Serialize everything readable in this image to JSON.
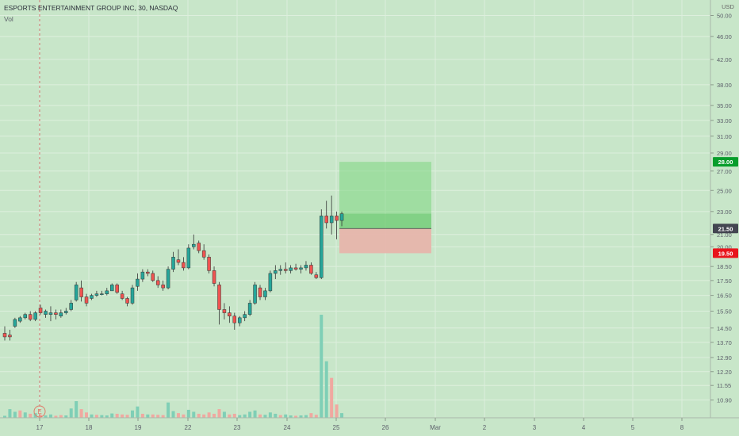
{
  "header": {
    "title": "ESPORTS ENTERTAINMENT GROUP INC, 30, NASDAQ",
    "vol_label": "Vol",
    "currency": "USD"
  },
  "colors": {
    "background": "#c8e6c9",
    "grid": "#ddefdd",
    "up": "#26a69a",
    "down": "#ef5350",
    "volume_up": "#7fcfb6",
    "volume_down": "#f0a8a0",
    "profit_zone": "#7dd67f",
    "loss_zone": "#e8b3aa",
    "target_badge": "#089e2c",
    "stop_badge": "#e8141c",
    "entry_badge": "#434651"
  },
  "chart_data": {
    "type": "candlestick",
    "title": "ESPORTS ENTERTAINMENT GROUP INC, 30, NASDAQ",
    "y_axis": {
      "ticks": [
        "10.90",
        "11.55",
        "12.20",
        "12.90",
        "13.70",
        "14.50",
        "15.50",
        "16.50",
        "17.50",
        "18.50",
        "20.00",
        "21.00",
        "23.00",
        "25.00",
        "27.00",
        "29.00",
        "31.00",
        "33.00",
        "35.00",
        "38.00",
        "42.00",
        "46.00",
        "50.00"
      ],
      "ylim": [
        10.7,
        50.0
      ],
      "scale": "log"
    },
    "x_axis": {
      "ticks": [
        "17",
        "18",
        "19",
        "22",
        "23",
        "24",
        "25",
        "26",
        "Mar",
        "2",
        "3",
        "4",
        "5",
        "8"
      ]
    },
    "event_marker": "E",
    "position": {
      "type": "long",
      "entry": 21.5,
      "target": 28.0,
      "stop": 19.5,
      "entry_label": "21.50",
      "target_label": "28.00",
      "stop_label": "19.50"
    },
    "candles": [
      [
        14.2,
        14.6,
        13.8,
        14.0
      ],
      [
        14.1,
        14.4,
        13.8,
        14.0
      ],
      [
        14.6,
        15.1,
        14.5,
        15.0
      ],
      [
        14.9,
        15.2,
        14.8,
        15.1
      ],
      [
        15.1,
        15.4,
        15.0,
        15.3
      ],
      [
        15.3,
        15.5,
        14.9,
        15.0
      ],
      [
        15.0,
        15.5,
        14.9,
        15.4
      ],
      [
        15.7,
        15.9,
        15.3,
        15.4
      ],
      [
        15.3,
        15.6,
        15.1,
        15.5
      ],
      [
        15.3,
        15.8,
        14.9,
        15.4
      ],
      [
        15.4,
        15.6,
        15.0,
        15.3
      ],
      [
        15.2,
        15.6,
        15.1,
        15.4
      ],
      [
        15.4,
        15.7,
        15.3,
        15.5
      ],
      [
        15.6,
        16.2,
        15.5,
        16.0
      ],
      [
        16.2,
        17.4,
        16.1,
        17.2
      ],
      [
        17.0,
        17.5,
        16.1,
        16.4
      ],
      [
        16.4,
        16.6,
        15.8,
        16.0
      ],
      [
        16.3,
        16.6,
        16.2,
        16.5
      ],
      [
        16.5,
        16.8,
        16.4,
        16.6
      ],
      [
        16.6,
        16.8,
        16.5,
        16.6
      ],
      [
        16.6,
        17.0,
        16.5,
        16.8
      ],
      [
        16.8,
        17.3,
        16.8,
        17.2
      ],
      [
        17.2,
        17.3,
        16.6,
        16.7
      ],
      [
        16.6,
        16.8,
        16.2,
        16.3
      ],
      [
        16.3,
        16.4,
        15.8,
        16.0
      ],
      [
        16.0,
        17.2,
        15.9,
        17.0
      ],
      [
        17.1,
        18.0,
        16.8,
        17.6
      ],
      [
        17.6,
        18.3,
        17.4,
        18.1
      ],
      [
        18.1,
        18.3,
        17.8,
        18.0
      ],
      [
        18.0,
        18.2,
        17.4,
        17.5
      ],
      [
        17.5,
        17.8,
        17.0,
        17.2
      ],
      [
        17.2,
        17.5,
        16.8,
        17.0
      ],
      [
        17.0,
        18.5,
        16.9,
        18.3
      ],
      [
        18.3,
        19.6,
        18.1,
        19.2
      ],
      [
        19.0,
        19.8,
        18.6,
        18.8
      ],
      [
        18.8,
        19.2,
        18.2,
        18.4
      ],
      [
        18.4,
        20.2,
        18.3,
        19.9
      ],
      [
        20.0,
        21.0,
        19.8,
        20.2
      ],
      [
        20.3,
        20.5,
        19.5,
        19.7
      ],
      [
        19.7,
        20.2,
        19.0,
        19.2
      ],
      [
        19.2,
        19.4,
        18.0,
        18.2
      ],
      [
        18.2,
        18.5,
        17.1,
        17.3
      ],
      [
        17.2,
        17.4,
        14.7,
        15.6
      ],
      [
        15.6,
        16.0,
        15.0,
        15.4
      ],
      [
        15.4,
        15.8,
        14.8,
        15.2
      ],
      [
        15.2,
        15.4,
        14.4,
        14.8
      ],
      [
        14.8,
        15.2,
        14.6,
        15.1
      ],
      [
        15.1,
        15.5,
        14.9,
        15.3
      ],
      [
        15.3,
        16.2,
        15.2,
        16.0
      ],
      [
        16.0,
        17.4,
        15.9,
        17.2
      ],
      [
        17.0,
        17.2,
        16.2,
        16.4
      ],
      [
        16.4,
        17.0,
        16.2,
        16.8
      ],
      [
        16.8,
        18.2,
        16.7,
        18.0
      ],
      [
        18.0,
        18.6,
        17.6,
        18.2
      ],
      [
        18.2,
        18.6,
        17.9,
        18.3
      ],
      [
        18.3,
        18.8,
        18.0,
        18.2
      ],
      [
        18.2,
        18.6,
        18.0,
        18.4
      ],
      [
        18.4,
        18.7,
        18.2,
        18.3
      ],
      [
        18.3,
        18.6,
        18.0,
        18.4
      ],
      [
        18.4,
        18.9,
        18.2,
        18.6
      ],
      [
        18.6,
        18.8,
        17.9,
        18.0
      ],
      [
        17.9,
        18.1,
        17.6,
        17.7
      ],
      [
        17.7,
        23.2,
        17.6,
        22.6
      ],
      [
        22.6,
        24.0,
        21.5,
        22.0
      ],
      [
        22.0,
        24.5,
        21.0,
        22.6
      ],
      [
        22.6,
        23.0,
        20.6,
        22.2
      ],
      [
        22.2,
        23.0,
        21.7,
        22.8
      ]
    ],
    "volume": [
      {
        "v": 0.6,
        "up": true
      },
      {
        "v": 2.6,
        "up": true
      },
      {
        "v": 1.8,
        "up": true
      },
      {
        "v": 2.2,
        "up": false
      },
      {
        "v": 1.6,
        "up": true
      },
      {
        "v": 1.2,
        "up": false
      },
      {
        "v": 1.4,
        "up": true
      },
      {
        "v": 0.9,
        "up": false
      },
      {
        "v": 0.7,
        "up": true
      },
      {
        "v": 1.0,
        "up": true
      },
      {
        "v": 0.6,
        "up": false
      },
      {
        "v": 0.8,
        "up": false
      },
      {
        "v": 0.7,
        "up": true
      },
      {
        "v": 2.8,
        "up": true
      },
      {
        "v": 5.0,
        "up": true
      },
      {
        "v": 2.6,
        "up": false
      },
      {
        "v": 1.6,
        "up": false
      },
      {
        "v": 1.0,
        "up": true
      },
      {
        "v": 0.9,
        "up": false
      },
      {
        "v": 0.8,
        "up": true
      },
      {
        "v": 0.7,
        "up": true
      },
      {
        "v": 1.3,
        "up": true
      },
      {
        "v": 1.2,
        "up": false
      },
      {
        "v": 1.0,
        "up": false
      },
      {
        "v": 0.9,
        "up": false
      },
      {
        "v": 2.2,
        "up": true
      },
      {
        "v": 3.4,
        "up": true
      },
      {
        "v": 1.2,
        "up": false
      },
      {
        "v": 1.0,
        "up": true
      },
      {
        "v": 1.0,
        "up": false
      },
      {
        "v": 0.9,
        "up": false
      },
      {
        "v": 0.8,
        "up": false
      },
      {
        "v": 4.6,
        "up": true
      },
      {
        "v": 2.0,
        "up": true
      },
      {
        "v": 1.4,
        "up": false
      },
      {
        "v": 1.0,
        "up": false
      },
      {
        "v": 2.4,
        "up": true
      },
      {
        "v": 1.8,
        "up": true
      },
      {
        "v": 1.2,
        "up": false
      },
      {
        "v": 1.0,
        "up": false
      },
      {
        "v": 1.6,
        "up": false
      },
      {
        "v": 1.2,
        "up": false
      },
      {
        "v": 2.6,
        "up": false
      },
      {
        "v": 1.8,
        "up": true
      },
      {
        "v": 1.0,
        "up": false
      },
      {
        "v": 1.2,
        "up": false
      },
      {
        "v": 0.8,
        "up": true
      },
      {
        "v": 1.0,
        "up": true
      },
      {
        "v": 1.8,
        "up": true
      },
      {
        "v": 2.2,
        "up": true
      },
      {
        "v": 1.0,
        "up": false
      },
      {
        "v": 0.9,
        "up": true
      },
      {
        "v": 1.6,
        "up": true
      },
      {
        "v": 1.2,
        "up": true
      },
      {
        "v": 0.8,
        "up": false
      },
      {
        "v": 1.0,
        "up": true
      },
      {
        "v": 0.7,
        "up": true
      },
      {
        "v": 0.6,
        "up": false
      },
      {
        "v": 0.7,
        "up": true
      },
      {
        "v": 0.8,
        "up": true
      },
      {
        "v": 1.4,
        "up": false
      },
      {
        "v": 0.9,
        "up": false
      },
      {
        "v": 31.0,
        "up": true
      },
      {
        "v": 17.0,
        "up": true
      },
      {
        "v": 12.0,
        "up": false
      },
      {
        "v": 4.0,
        "up": false
      },
      {
        "v": 1.4,
        "up": true
      }
    ]
  }
}
